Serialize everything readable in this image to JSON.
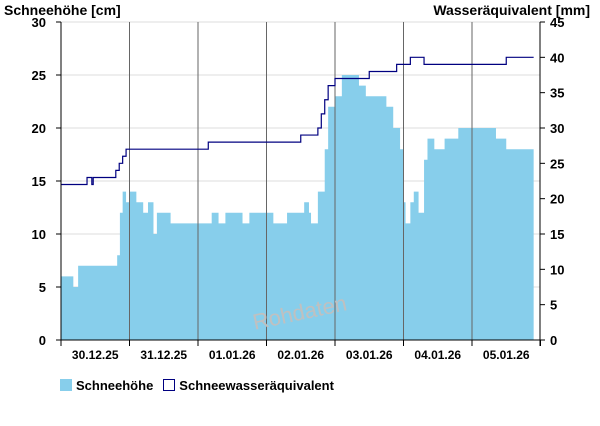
{
  "chart_data": {
    "type": "area",
    "left_axis_title": "Schneehöhe [cm]",
    "right_axis_title": "Wasseräquivalent [mm]",
    "watermark": "Rohdaten",
    "ylim_left": [
      0,
      30
    ],
    "yticks_left": [
      0,
      5,
      10,
      15,
      20,
      25,
      30
    ],
    "ylim_right": [
      0,
      45
    ],
    "yticks_right": [
      0,
      5,
      10,
      15,
      20,
      25,
      30,
      35,
      40,
      45
    ],
    "xlim_days": [
      0,
      7
    ],
    "x_tick_labels": [
      "30.12.25",
      "31.12.25",
      "01.01.26",
      "02.01.26",
      "03.01.26",
      "04.01.26",
      "05.01.26"
    ],
    "gridlines": "horizontal",
    "legend_position": "bottom-left",
    "colors": {
      "snow": "#87ceeb",
      "swe": "#000080",
      "grid": "#dddddd",
      "day_line": "#666666"
    },
    "series": [
      {
        "name": "Schneehöhe",
        "axis": "left",
        "style": "filled-area",
        "x_days": [
          0,
          0.15,
          0.18,
          0.25,
          0.55,
          0.65,
          0.82,
          0.86,
          0.9,
          0.95,
          1.0,
          1.05,
          1.1,
          1.2,
          1.27,
          1.35,
          1.4,
          1.45,
          1.5,
          1.6,
          1.7,
          1.8,
          1.9,
          2.1,
          2.2,
          2.3,
          2.4,
          2.5,
          2.65,
          2.7,
          2.75,
          2.8,
          3.0,
          3.1,
          3.3,
          3.45,
          3.55,
          3.62,
          3.65,
          3.75,
          3.85,
          3.9,
          4.0,
          4.1,
          4.2,
          4.35,
          4.45,
          4.55,
          4.65,
          4.75,
          4.85,
          4.95,
          5.0,
          5.03,
          5.07,
          5.1,
          5.15,
          5.22,
          5.3,
          5.35,
          5.45,
          5.6,
          5.75,
          5.8,
          5.9,
          6.0,
          6.1,
          6.2,
          6.35,
          6.4,
          6.5,
          6.55,
          6.6,
          6.75,
          6.9
        ],
        "values": [
          6,
          6,
          5,
          7,
          7,
          7,
          8,
          12,
          14,
          13,
          14,
          14,
          13,
          12,
          13,
          10,
          12,
          12,
          12,
          11,
          11,
          11,
          11,
          11,
          12,
          11,
          12,
          12,
          11,
          11,
          12,
          12,
          12,
          11,
          12,
          12,
          13,
          12,
          11,
          14,
          18,
          22,
          23,
          25,
          25,
          24,
          23,
          23,
          23,
          22,
          20,
          18,
          13,
          11,
          11,
          13,
          14,
          12,
          17,
          19,
          18,
          19,
          19,
          20,
          20,
          20,
          20,
          20,
          19,
          19,
          18,
          18,
          18,
          18,
          17
        ]
      },
      {
        "name": "Schneewasseräquivalent",
        "axis": "right",
        "style": "step-line",
        "x_days": [
          0,
          0.36,
          0.38,
          0.45,
          0.47,
          0.75,
          0.8,
          0.85,
          0.9,
          0.95,
          1.0,
          1.5,
          2.0,
          2.15,
          2.5,
          2.7,
          3.0,
          3.5,
          3.75,
          3.8,
          3.85,
          3.9,
          4.0,
          4.2,
          4.4,
          4.5,
          4.6,
          4.75,
          4.9,
          5.0,
          5.1,
          5.3,
          5.5,
          5.7,
          5.9,
          6.0,
          6.3,
          6.5,
          6.9
        ],
        "values": [
          22,
          22,
          23,
          22,
          23,
          23,
          24,
          25,
          26,
          27,
          27,
          27,
          27,
          28,
          28,
          28,
          28,
          29,
          30,
          32,
          34,
          36,
          37,
          37,
          37,
          38,
          38,
          38,
          39,
          39,
          40,
          39,
          39,
          39,
          39,
          39,
          39,
          40,
          40
        ]
      }
    ]
  }
}
